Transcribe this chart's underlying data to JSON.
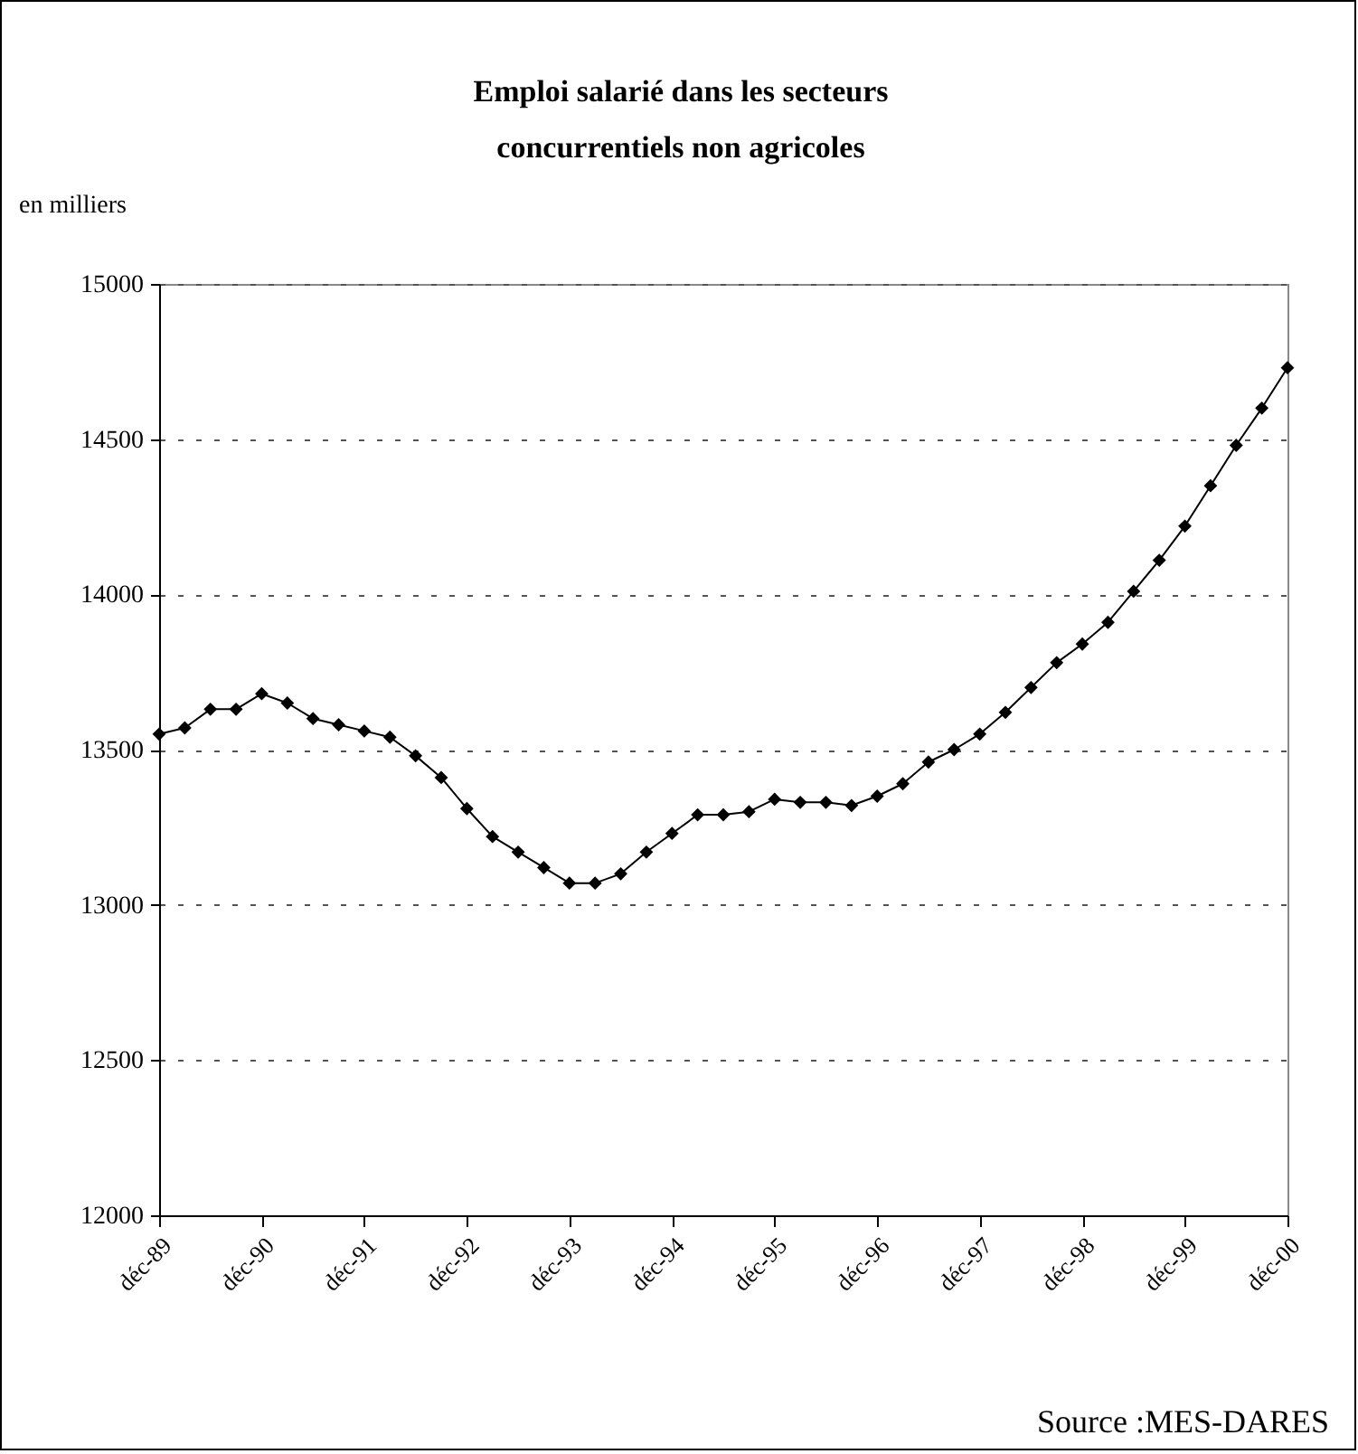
{
  "chart_data": {
    "type": "line",
    "title": "Emploi salarié dans les secteurs concurrentiels non agricoles",
    "ylabel": "en milliers",
    "categories": [
      "déc-89",
      null,
      null,
      null,
      "déc-90",
      null,
      null,
      null,
      "déc-91",
      null,
      null,
      null,
      "déc-92",
      null,
      null,
      null,
      "déc-93",
      null,
      null,
      null,
      "déc-94",
      null,
      null,
      null,
      "déc-95",
      null,
      null,
      null,
      "déc-96",
      null,
      null,
      null,
      "déc-97",
      null,
      null,
      null,
      "déc-98",
      null,
      null,
      null,
      "déc-99",
      null,
      null,
      null,
      "déc-00"
    ],
    "series": [
      {
        "color": "#000000",
        "values": [
          13550,
          13570,
          13630,
          13630,
          13680,
          13650,
          13600,
          13580,
          13560,
          13540,
          13480,
          13410,
          13310,
          13220,
          13170,
          13120,
          13070,
          13070,
          13100,
          13170,
          13230,
          13290,
          13290,
          13300,
          13340,
          13330,
          13330,
          13320,
          13350,
          13390,
          13460,
          13500,
          13550,
          13620,
          13700,
          13780,
          13840,
          13910,
          14010,
          14110,
          14220,
          14350,
          14480,
          14600,
          14730
        ]
      }
    ],
    "ylim": [
      12000,
      15000
    ],
    "yticks": [
      12000,
      12500,
      13000,
      13500,
      14000,
      14500,
      15000
    ],
    "grid": "y",
    "marker": "diamond",
    "line_style": "solid",
    "annotations": [
      "Source :MES-DARES"
    ]
  }
}
